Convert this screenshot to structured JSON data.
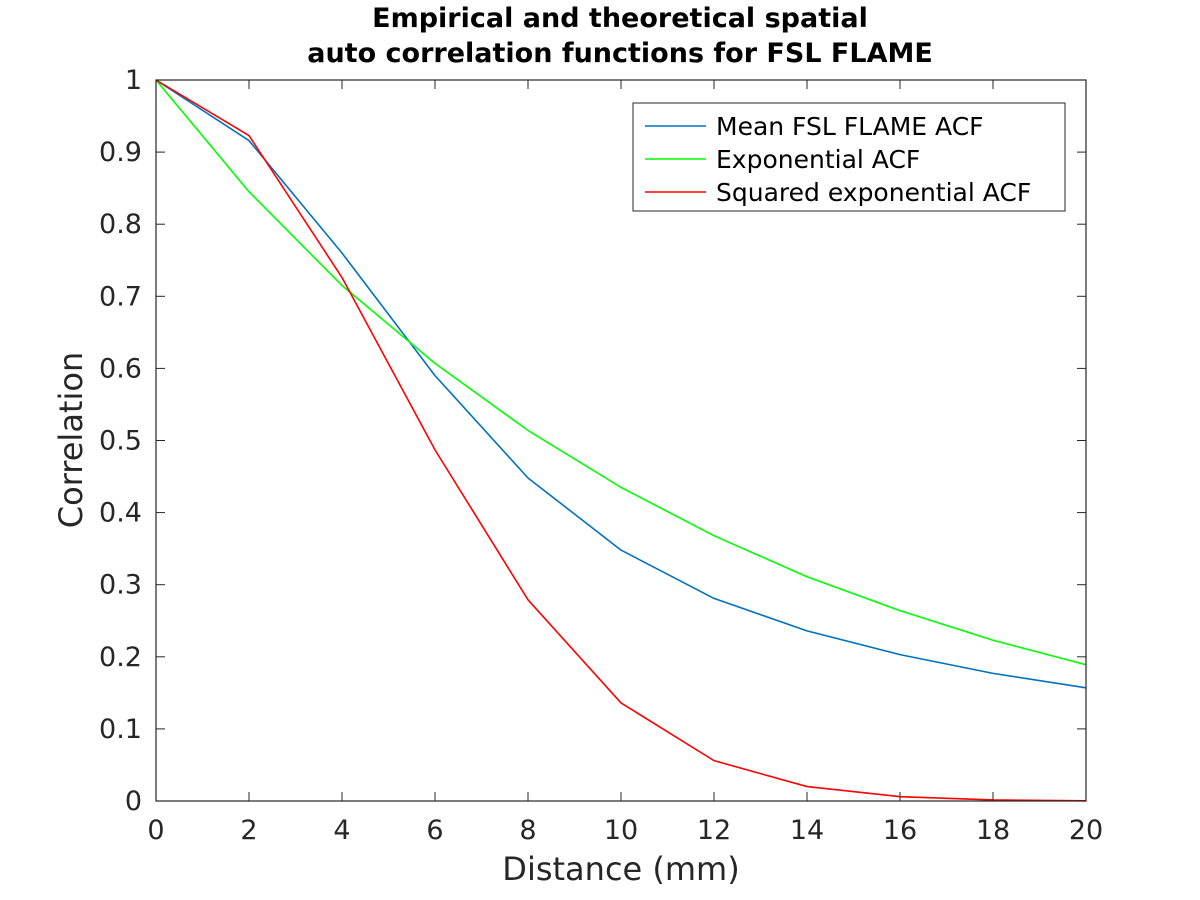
{
  "chart_data": {
    "type": "line",
    "title": [
      "Empirical and theoretical spatial",
      "auto correlation functions for FSL FLAME"
    ],
    "xlabel": "Distance (mm)",
    "ylabel": "Correlation",
    "xlim": [
      0,
      20
    ],
    "ylim": [
      0,
      1
    ],
    "xticks": [
      0,
      2,
      4,
      6,
      8,
      10,
      12,
      14,
      16,
      18,
      20
    ],
    "xtick_labels": [
      "0",
      "2",
      "4",
      "6",
      "8",
      "10",
      "12",
      "14",
      "16",
      "18",
      "20"
    ],
    "yticks": [
      0,
      0.1,
      0.2,
      0.3,
      0.4,
      0.5,
      0.6,
      0.7,
      0.8,
      0.9,
      1
    ],
    "ytick_labels": [
      "0",
      "0.1",
      "0.2",
      "0.3",
      "0.4",
      "0.5",
      "0.6",
      "0.7",
      "0.8",
      "0.9",
      "1"
    ],
    "grid": false,
    "legend_position": "top-right",
    "x": [
      0,
      2,
      4,
      6,
      8,
      10,
      12,
      14,
      16,
      18,
      20
    ],
    "series": [
      {
        "name": "Mean FSL FLAME ACF",
        "color": "#0072BD",
        "values": [
          1.0,
          0.916,
          0.76,
          0.59,
          0.448,
          0.348,
          0.281,
          0.236,
          0.203,
          0.177,
          0.157
        ]
      },
      {
        "name": "Exponential ACF",
        "color": "#00FF00",
        "values": [
          1.0,
          0.845,
          0.715,
          0.607,
          0.514,
          0.435,
          0.368,
          0.311,
          0.264,
          0.223,
          0.189
        ]
      },
      {
        "name": "Squared exponential ACF",
        "color": "#FF0000",
        "values": [
          1.0,
          0.923,
          0.726,
          0.487,
          0.279,
          0.136,
          0.056,
          0.02,
          0.006,
          0.0015,
          0.0003
        ]
      }
    ]
  }
}
